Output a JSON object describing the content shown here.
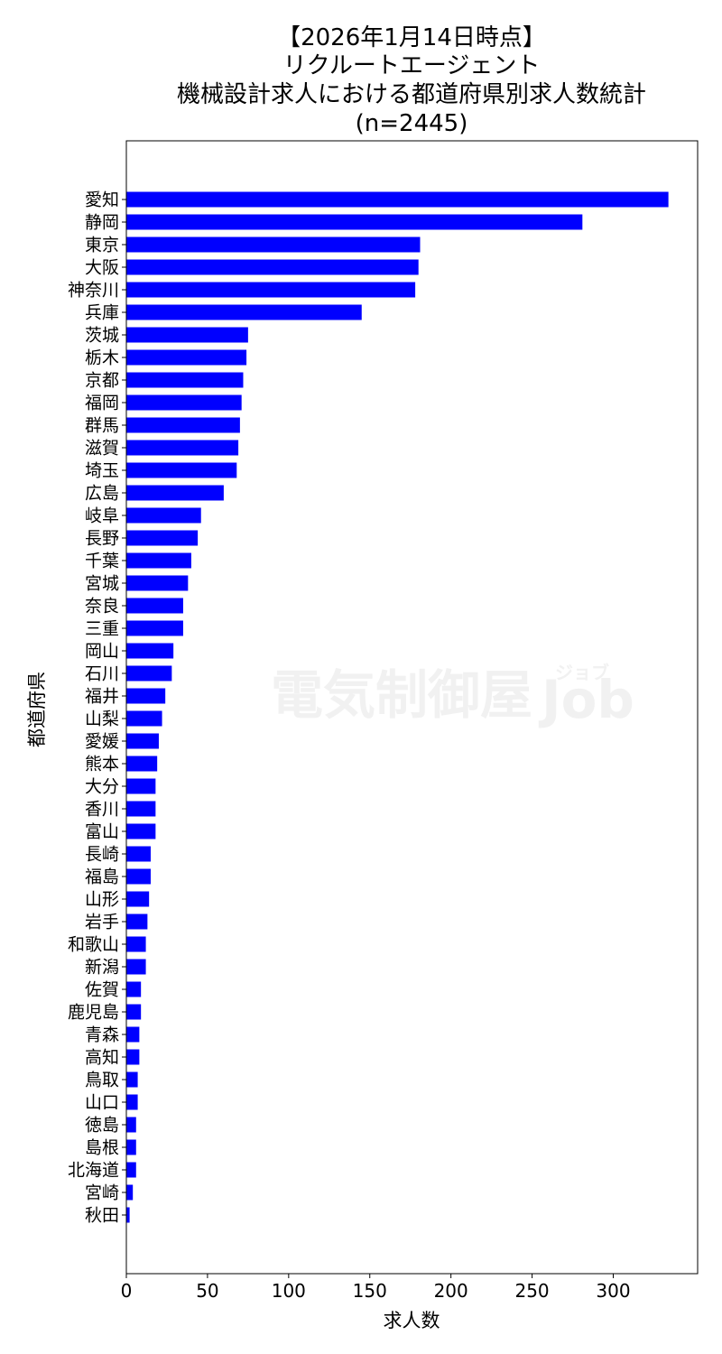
{
  "chart_data": {
    "type": "bar",
    "orientation": "horizontal",
    "title_lines": [
      "【2026年1月14日時点】",
      "リクルートエージェント",
      "機械設計求人における都道府県別求人数統計",
      "(n=2445)"
    ],
    "xlabel": "求人数",
    "ylabel": "都道府県",
    "xlim": [
      0,
      352
    ],
    "xticks": [
      0,
      50,
      100,
      150,
      200,
      250,
      300
    ],
    "bar_color": "#0000ff",
    "grid": false,
    "legend": "none",
    "categories": [
      "愛知",
      "静岡",
      "東京",
      "大阪",
      "神奈川",
      "兵庫",
      "茨城",
      "栃木",
      "京都",
      "福岡",
      "群馬",
      "滋賀",
      "埼玉",
      "広島",
      "岐阜",
      "長野",
      "千葉",
      "宮城",
      "奈良",
      "三重",
      "岡山",
      "石川",
      "福井",
      "山梨",
      "愛媛",
      "熊本",
      "大分",
      "香川",
      "富山",
      "長崎",
      "福島",
      "山形",
      "岩手",
      "和歌山",
      "新潟",
      "佐賀",
      "鹿児島",
      "青森",
      "高知",
      "鳥取",
      "山口",
      "徳島",
      "島根",
      "北海道",
      "宮崎",
      "秋田"
    ],
    "values": [
      334,
      281,
      181,
      180,
      178,
      145,
      75,
      74,
      72,
      71,
      70,
      69,
      68,
      60,
      46,
      44,
      40,
      38,
      35,
      35,
      29,
      28,
      24,
      22,
      20,
      19,
      18,
      18,
      18,
      15,
      15,
      14,
      13,
      12,
      12,
      9,
      9,
      8,
      8,
      7,
      7,
      6,
      6,
      6,
      4,
      2
    ]
  },
  "watermark": {
    "text": "電気制御屋",
    "sub_text": "ジョブ",
    "brand": "Job"
  }
}
